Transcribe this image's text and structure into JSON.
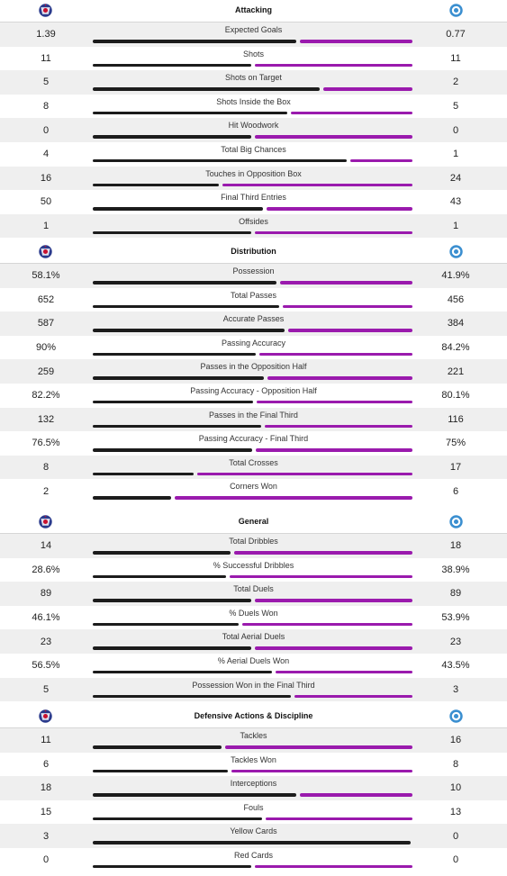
{
  "colors": {
    "home_bar": "#1c1c1c",
    "away_bar": "#9a1aad",
    "shade": "#efefef"
  },
  "teams": {
    "home_icon": "fc-copenhagen-crest-icon",
    "away_icon": "away-club-crest-icon"
  },
  "sections": [
    {
      "title": "Attacking",
      "stats": [
        {
          "label": "Expected Goals",
          "home": "1.39",
          "away": "0.77",
          "h": 1.39,
          "a": 0.77
        },
        {
          "label": "Shots",
          "home": "11",
          "away": "11",
          "h": 11,
          "a": 11
        },
        {
          "label": "Shots on Target",
          "home": "5",
          "away": "2",
          "h": 5,
          "a": 2
        },
        {
          "label": "Shots Inside the Box",
          "home": "8",
          "away": "5",
          "h": 8,
          "a": 5
        },
        {
          "label": "Hit Woodwork",
          "home": "0",
          "away": "0",
          "h": 0,
          "a": 0
        },
        {
          "label": "Total Big Chances",
          "home": "4",
          "away": "1",
          "h": 4,
          "a": 1
        },
        {
          "label": "Touches in Opposition Box",
          "home": "16",
          "away": "24",
          "h": 16,
          "a": 24
        },
        {
          "label": "Final Third Entries",
          "home": "50",
          "away": "43",
          "h": 50,
          "a": 43
        },
        {
          "label": "Offsides",
          "home": "1",
          "away": "1",
          "h": 1,
          "a": 1
        }
      ]
    },
    {
      "title": "Distribution",
      "stats": [
        {
          "label": "Possession",
          "home": "58.1%",
          "away": "41.9%",
          "h": 58.1,
          "a": 41.9
        },
        {
          "label": "Total Passes",
          "home": "652",
          "away": "456",
          "h": 652,
          "a": 456
        },
        {
          "label": "Accurate Passes",
          "home": "587",
          "away": "384",
          "h": 587,
          "a": 384
        },
        {
          "label": "Passing Accuracy",
          "home": "90%",
          "away": "84.2%",
          "h": 90,
          "a": 84.2
        },
        {
          "label": "Passes in the Opposition Half",
          "home": "259",
          "away": "221",
          "h": 259,
          "a": 221
        },
        {
          "label": "Passing Accuracy - Opposition Half",
          "home": "82.2%",
          "away": "80.1%",
          "h": 82.2,
          "a": 80.1
        },
        {
          "label": "Passes in the Final Third",
          "home": "132",
          "away": "116",
          "h": 132,
          "a": 116
        },
        {
          "label": "Passing Accuracy - Final Third",
          "home": "76.5%",
          "away": "75%",
          "h": 76.5,
          "a": 75
        },
        {
          "label": "Total Crosses",
          "home": "8",
          "away": "17",
          "h": 8,
          "a": 17
        },
        {
          "label": "Corners Won",
          "home": "2",
          "away": "6",
          "h": 2,
          "a": 6
        }
      ]
    },
    {
      "title": "General",
      "stats": [
        {
          "label": "Total Dribbles",
          "home": "14",
          "away": "18",
          "h": 14,
          "a": 18
        },
        {
          "label": "% Successful Dribbles",
          "home": "28.6%",
          "away": "38.9%",
          "h": 28.6,
          "a": 38.9
        },
        {
          "label": "Total Duels",
          "home": "89",
          "away": "89",
          "h": 89,
          "a": 89
        },
        {
          "label": "% Duels Won",
          "home": "46.1%",
          "away": "53.9%",
          "h": 46.1,
          "a": 53.9
        },
        {
          "label": "Total Aerial Duels",
          "home": "23",
          "away": "23",
          "h": 23,
          "a": 23
        },
        {
          "label": "% Aerial Duels Won",
          "home": "56.5%",
          "away": "43.5%",
          "h": 56.5,
          "a": 43.5
        },
        {
          "label": "Possession Won in the Final Third",
          "home": "5",
          "away": "3",
          "h": 5,
          "a": 3
        }
      ]
    },
    {
      "title": "Defensive Actions & Discipline",
      "stats": [
        {
          "label": "Tackles",
          "home": "11",
          "away": "16",
          "h": 11,
          "a": 16
        },
        {
          "label": "Tackles Won",
          "home": "6",
          "away": "8",
          "h": 6,
          "a": 8
        },
        {
          "label": "Interceptions",
          "home": "18",
          "away": "10",
          "h": 18,
          "a": 10
        },
        {
          "label": "Fouls",
          "home": "15",
          "away": "13",
          "h": 15,
          "a": 13
        },
        {
          "label": "Yellow Cards",
          "home": "3",
          "away": "0",
          "h": 3,
          "a": 0
        },
        {
          "label": "Red Cards",
          "home": "0",
          "away": "0",
          "h": 0,
          "a": 0
        }
      ]
    }
  ]
}
